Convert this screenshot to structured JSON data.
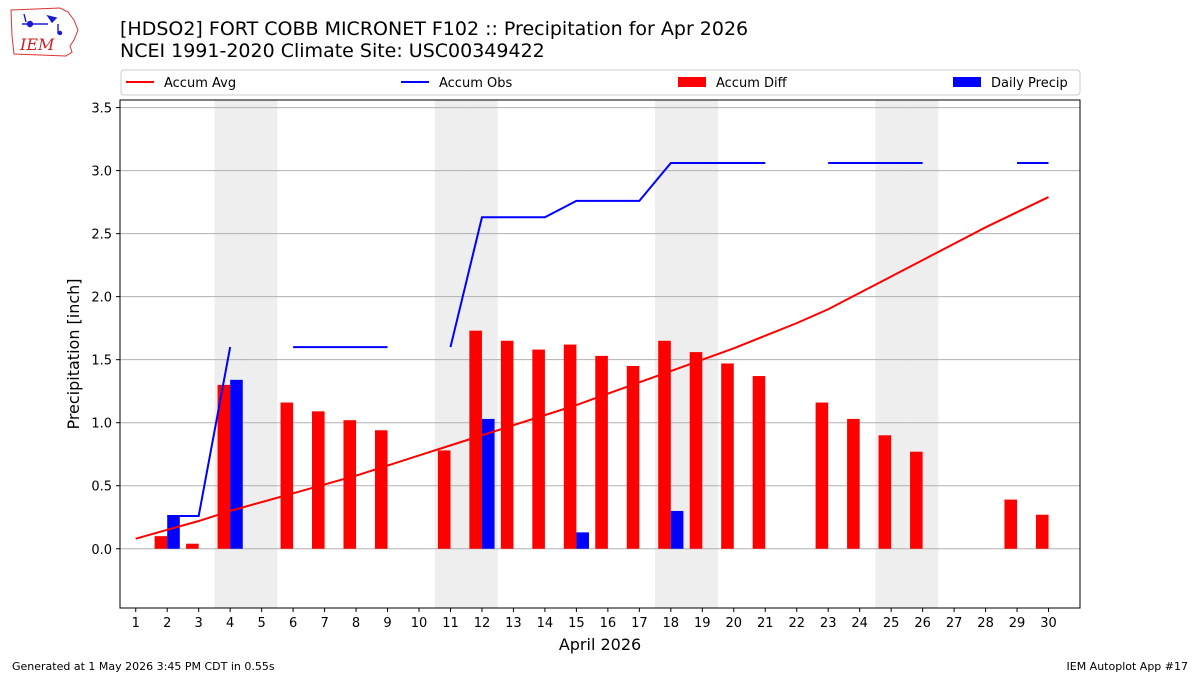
{
  "logo": {
    "text": "IEM",
    "icon": "iem-iowa-map-logo"
  },
  "title_line1": "[HDSO2] FORT COBB MICRONET F102 :: Precipitation for Apr 2026",
  "title_line2": "NCEI 1991-2020 Climate Site: USC00349422",
  "footer_left": "Generated at 1 May 2026 3:45 PM CDT in 0.55s",
  "footer_right": "IEM Autoplot App #17",
  "chart_data": {
    "type": "bar",
    "xlabel": "April 2026",
    "ylabel": "Precipitation [inch]",
    "ylim": [
      -0.47,
      3.56
    ],
    "xlim": [
      0.5,
      31
    ],
    "yticks": [
      "0.0",
      "0.5",
      "1.0",
      "1.5",
      "2.0",
      "2.5",
      "3.0",
      "3.5"
    ],
    "xticks": [
      "1",
      "2",
      "3",
      "4",
      "5",
      "6",
      "7",
      "8",
      "9",
      "10",
      "11",
      "12",
      "13",
      "14",
      "15",
      "16",
      "17",
      "18",
      "19",
      "20",
      "21",
      "22",
      "23",
      "24",
      "25",
      "26",
      "27",
      "28",
      "29",
      "30"
    ],
    "grid": "horizontal",
    "legend_position": "top",
    "weekend_shading_days": [
      4,
      5,
      11,
      12,
      18,
      19,
      25,
      26
    ],
    "colors": {
      "accum_avg": "#ff0000",
      "accum_obs": "#0000ff",
      "accum_diff": "#ff0000",
      "daily_precip": "#0000ff",
      "weekend": "#eeeeee",
      "grid": "#b0b0b0"
    },
    "series": [
      {
        "name": "Accum Avg",
        "kind": "line",
        "x": [
          1,
          2,
          3,
          4,
          5,
          6,
          7,
          8,
          9,
          10,
          11,
          12,
          13,
          14,
          15,
          16,
          17,
          18,
          19,
          20,
          21,
          22,
          23,
          24,
          25,
          26,
          27,
          28,
          29,
          30
        ],
        "values": [
          0.08,
          0.15,
          0.22,
          0.3,
          0.37,
          0.44,
          0.51,
          0.58,
          0.66,
          0.74,
          0.82,
          0.9,
          0.98,
          1.06,
          1.14,
          1.23,
          1.32,
          1.41,
          1.5,
          1.59,
          1.69,
          1.79,
          1.9,
          2.03,
          2.16,
          2.29,
          2.42,
          2.55,
          2.67,
          2.79
        ]
      },
      {
        "name": "Accum Obs",
        "kind": "line",
        "segments": [
          {
            "x": [
              2,
              3,
              4
            ],
            "values": [
              0.26,
              0.26,
              1.6
            ]
          },
          {
            "x": [
              6,
              7,
              8,
              9
            ],
            "values": [
              1.6,
              1.6,
              1.6,
              1.6
            ]
          },
          {
            "x": [
              11,
              12,
              13,
              14,
              15,
              16,
              17,
              18,
              19,
              20,
              21
            ],
            "values": [
              1.6,
              2.63,
              2.63,
              2.63,
              2.76,
              2.76,
              2.76,
              3.06,
              3.06,
              3.06,
              3.06
            ]
          },
          {
            "x": [
              23,
              24,
              25,
              26
            ],
            "values": [
              3.06,
              3.06,
              3.06,
              3.06
            ]
          },
          {
            "x": [
              29,
              30
            ],
            "values": [
              3.06,
              3.06
            ]
          }
        ]
      },
      {
        "name": "Accum Diff",
        "kind": "bar",
        "x": [
          2,
          3,
          4,
          6,
          7,
          8,
          9,
          11,
          12,
          13,
          14,
          15,
          16,
          17,
          18,
          19,
          20,
          21,
          23,
          24,
          25,
          26,
          29,
          30
        ],
        "values": [
          0.1,
          0.04,
          1.3,
          1.16,
          1.09,
          1.02,
          0.94,
          0.78,
          1.73,
          1.65,
          1.58,
          1.62,
          1.53,
          1.45,
          1.65,
          1.56,
          1.47,
          1.37,
          1.16,
          1.03,
          0.9,
          0.77,
          0.39,
          0.27
        ]
      },
      {
        "name": "Daily Precip",
        "kind": "bar",
        "x": [
          2,
          4,
          12,
          15,
          18
        ],
        "values": [
          0.26,
          1.34,
          1.03,
          0.13,
          0.3
        ]
      }
    ]
  }
}
